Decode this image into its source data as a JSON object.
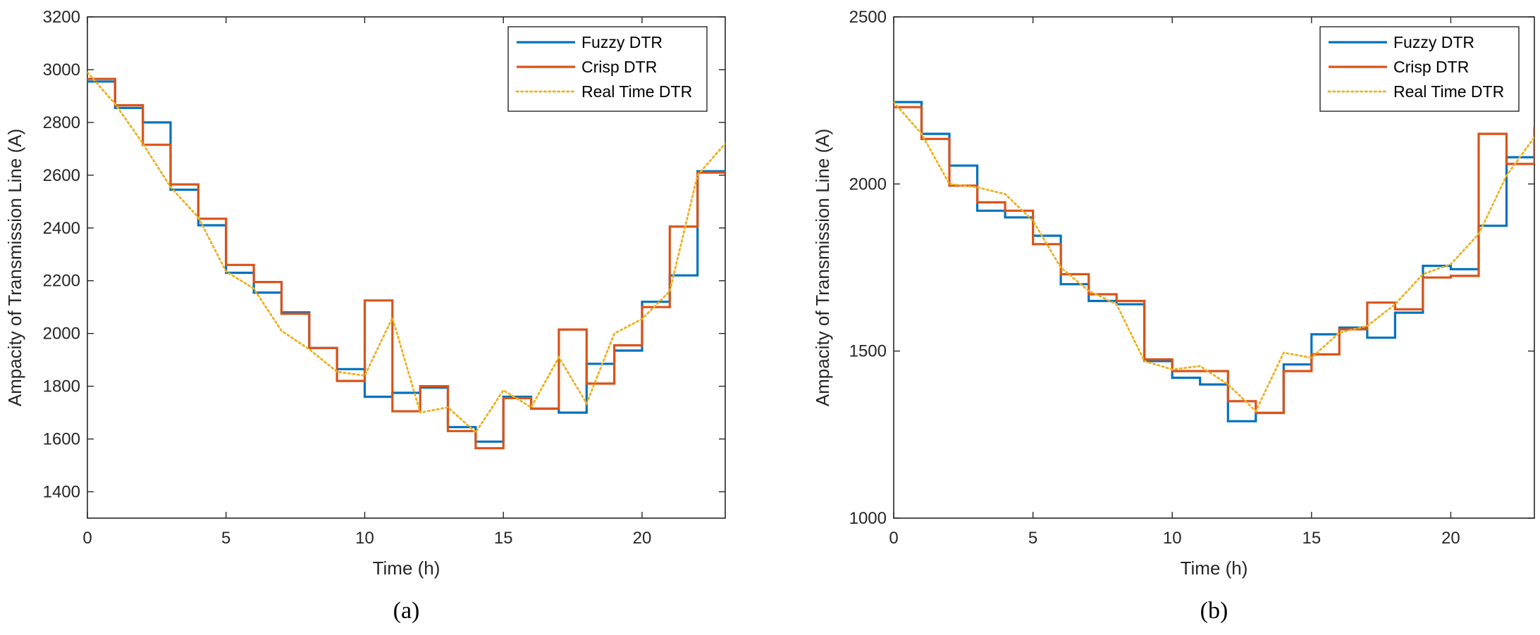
{
  "chart_data": [
    {
      "id": "a",
      "type": "line",
      "caption": "(a)",
      "xlabel": "Time (h)",
      "ylabel": "Ampacity of Transmission Line (A)",
      "xlim": [
        0,
        23
      ],
      "ylim": [
        1300,
        3200
      ],
      "xticks": [
        0,
        5,
        10,
        15,
        20
      ],
      "yticks": [
        1400,
        1600,
        1800,
        2000,
        2200,
        2400,
        2600,
        2800,
        3000,
        3200
      ],
      "legend_position": "top-right",
      "x": [
        0,
        1,
        2,
        3,
        4,
        5,
        6,
        7,
        8,
        9,
        10,
        11,
        12,
        13,
        14,
        15,
        16,
        17,
        18,
        19,
        20,
        21,
        22,
        23
      ],
      "series": [
        {
          "name": "Fuzzy DTR",
          "color": "#0072BD",
          "style": "step",
          "values": [
            2955,
            2855,
            2800,
            2545,
            2410,
            2230,
            2155,
            2080,
            1945,
            1865,
            1760,
            1775,
            1795,
            1645,
            1590,
            1760,
            1715,
            1700,
            1885,
            1935,
            2120,
            2220,
            2615,
            2600
          ]
        },
        {
          "name": "Crisp DTR",
          "color": "#D95319",
          "style": "step",
          "values": [
            2965,
            2865,
            2715,
            2565,
            2435,
            2260,
            2195,
            2075,
            1945,
            1820,
            2125,
            1705,
            1800,
            1630,
            1565,
            1755,
            1715,
            2015,
            1810,
            1955,
            2100,
            2405,
            2610,
            2600
          ]
        },
        {
          "name": "Real Time DTR",
          "color": "#EDB120",
          "style": "dotted",
          "values": [
            2990,
            2870,
            2720,
            2555,
            2440,
            2235,
            2170,
            2010,
            1940,
            1855,
            1840,
            2060,
            1700,
            1720,
            1625,
            1785,
            1720,
            1910,
            1735,
            2000,
            2055,
            2160,
            2600,
            2720
          ]
        }
      ]
    },
    {
      "id": "b",
      "type": "line",
      "caption": "(b)",
      "xlabel": "Time (h)",
      "ylabel": "Ampacity of Transmission Line (A)",
      "xlim": [
        0,
        23
      ],
      "ylim": [
        1000,
        2500
      ],
      "xticks": [
        0,
        5,
        10,
        15,
        20
      ],
      "yticks": [
        1000,
        1500,
        2000,
        2500
      ],
      "legend_position": "top-right",
      "x": [
        0,
        1,
        2,
        3,
        4,
        5,
        6,
        7,
        8,
        9,
        10,
        11,
        12,
        13,
        14,
        15,
        16,
        17,
        18,
        19,
        20,
        21,
        22,
        23
      ],
      "series": [
        {
          "name": "Fuzzy DTR",
          "color": "#0072BD",
          "style": "step",
          "values": [
            2245,
            2150,
            2055,
            1920,
            1900,
            1845,
            1700,
            1650,
            1640,
            1470,
            1420,
            1400,
            1290,
            1315,
            1460,
            1550,
            1570,
            1540,
            1615,
            1755,
            1745,
            1875,
            2080,
            2170
          ]
        },
        {
          "name": "Crisp DTR",
          "color": "#D95319",
          "style": "step",
          "values": [
            2230,
            2135,
            1995,
            1945,
            1920,
            1820,
            1730,
            1670,
            1650,
            1475,
            1440,
            1440,
            1350,
            1315,
            1440,
            1490,
            1565,
            1645,
            1625,
            1720,
            1725,
            2150,
            2060,
            2170
          ]
        },
        {
          "name": "Real Time DTR",
          "color": "#EDB120",
          "style": "dotted",
          "values": [
            2245,
            2150,
            2000,
            1990,
            1970,
            1890,
            1750,
            1680,
            1640,
            1470,
            1445,
            1455,
            1400,
            1320,
            1495,
            1480,
            1555,
            1575,
            1640,
            1730,
            1760,
            1850,
            2025,
            2140
          ]
        }
      ]
    }
  ]
}
